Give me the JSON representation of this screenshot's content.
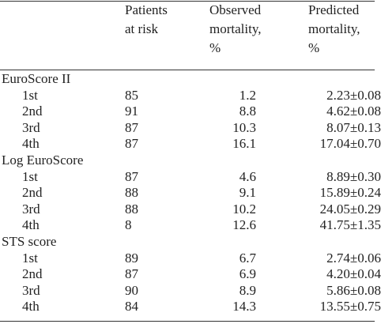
{
  "header": {
    "patients": [
      "Patients",
      "at risk"
    ],
    "observed": [
      "Observed",
      "mortality,",
      "%"
    ],
    "predicted": [
      "Predicted",
      "mortality,",
      "%"
    ]
  },
  "sections": [
    {
      "label": "EuroScore II",
      "rows": [
        [
          "1st",
          85,
          1.2,
          "2.23±0.08"
        ],
        [
          "2nd",
          91,
          8.8,
          "4.62±0.08"
        ],
        [
          "3rd",
          87,
          10.3,
          "8.07±0.13"
        ],
        [
          "4th",
          87,
          16.1,
          "17.04±0.70"
        ]
      ]
    },
    {
      "label": "Log EuroScore",
      "rows": [
        [
          "1st",
          87,
          4.6,
          "8.89±0.30"
        ],
        [
          "2nd",
          88,
          9.1,
          "15.89±0.24"
        ],
        [
          "3rd",
          88,
          10.2,
          "24.05±0.29"
        ],
        [
          "4th",
          8,
          12.6,
          "41.75±1.35"
        ]
      ]
    },
    {
      "label": "STS score",
      "rows": [
        [
          "1st",
          89,
          6.7,
          "2.74±0.06"
        ],
        [
          "2nd",
          87,
          6.9,
          "4.20±0.04"
        ],
        [
          "3rd",
          90,
          8.9,
          "5.86±0.08"
        ],
        [
          "4th",
          84,
          14.3,
          "13.55±0.75"
        ]
      ]
    }
  ]
}
